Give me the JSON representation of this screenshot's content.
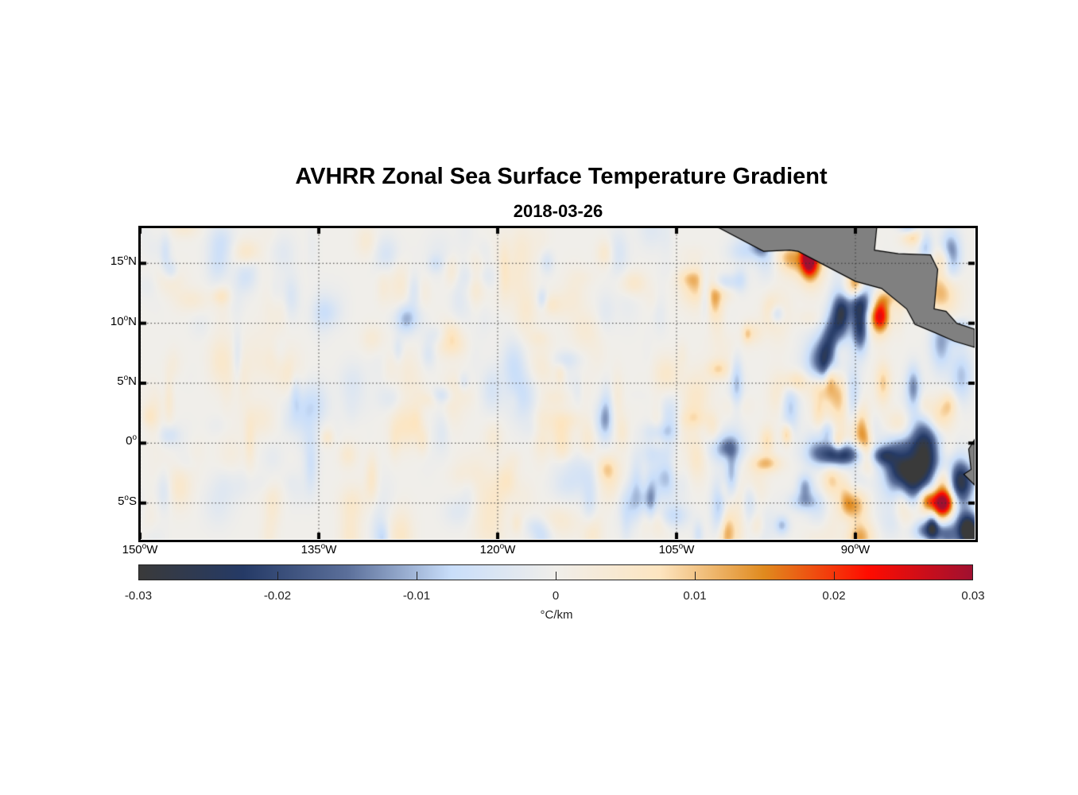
{
  "title": "AVHRR Zonal Sea Surface Temperature Gradient",
  "subtitle": "2018-03-26",
  "map": {
    "lon_range": [
      -150,
      -80
    ],
    "lat_range": [
      -8,
      18
    ],
    "lat_ticks": [
      {
        "value": 15,
        "num": "15",
        "hemi": "N"
      },
      {
        "value": 10,
        "num": "10",
        "hemi": "N"
      },
      {
        "value": 5,
        "num": "5",
        "hemi": "N"
      },
      {
        "value": 0,
        "num": "0",
        "hemi": ""
      },
      {
        "value": -5,
        "num": "5",
        "hemi": "S"
      }
    ],
    "lon_ticks": [
      {
        "value": -150,
        "num": "150",
        "hemi": "W"
      },
      {
        "value": -135,
        "num": "135",
        "hemi": "W"
      },
      {
        "value": -120,
        "num": "120",
        "hemi": "W"
      },
      {
        "value": -105,
        "num": "105",
        "hemi": "W"
      },
      {
        "value": -90,
        "num": "90",
        "hemi": "W"
      }
    ],
    "degree_symbol": "o",
    "land_color": "#808080"
  },
  "colorbar": {
    "range": [
      -0.03,
      0.03
    ],
    "ticks": [
      "-0.03",
      "-0.02",
      "-0.01",
      "0",
      "0.01",
      "0.02",
      "0.03"
    ],
    "units": "°C/km",
    "stops": [
      "#3a3a3a",
      "#253a66",
      "#5b6f9a",
      "#c9defa",
      "#f0eeea",
      "#fde5c0",
      "#e08a1e",
      "#ff0c00",
      "#a01030"
    ]
  }
}
